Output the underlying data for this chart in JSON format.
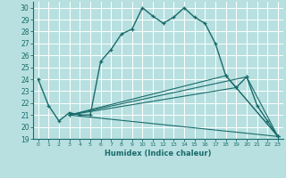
{
  "bg_color": "#b8e0e0",
  "grid_color": "#ffffff",
  "line_color": "#1a6b6b",
  "xlim": [
    -0.5,
    23.5
  ],
  "ylim": [
    19,
    30.5
  ],
  "yticks": [
    19,
    20,
    21,
    22,
    23,
    24,
    25,
    26,
    27,
    28,
    29,
    30
  ],
  "xticks": [
    0,
    1,
    2,
    3,
    4,
    5,
    6,
    7,
    8,
    9,
    10,
    11,
    12,
    13,
    14,
    15,
    16,
    17,
    18,
    19,
    20,
    21,
    22,
    23
  ],
  "xlabel": "Humidex (Indice chaleur)",
  "series1_x": [
    0,
    1,
    2,
    3,
    4,
    5,
    6,
    7,
    8,
    9,
    10,
    11,
    12,
    13,
    14,
    15,
    16,
    17,
    18,
    19,
    20,
    21,
    22,
    23
  ],
  "series1_y": [
    24.0,
    21.8,
    20.5,
    21.2,
    21.0,
    21.0,
    25.5,
    26.5,
    27.8,
    28.2,
    30.0,
    29.3,
    28.7,
    29.2,
    30.0,
    29.2,
    28.7,
    27.0,
    24.3,
    23.3,
    24.2,
    21.8,
    20.5,
    19.2
  ],
  "series2_x": [
    3,
    23
  ],
  "series2_y": [
    21.0,
    19.2
  ],
  "series3_x": [
    3,
    20,
    23
  ],
  "series3_y": [
    21.0,
    24.2,
    19.2
  ],
  "series4_x": [
    3,
    19,
    23
  ],
  "series4_y": [
    21.0,
    23.3,
    19.2
  ],
  "series5_x": [
    3,
    18,
    23
  ],
  "series5_y": [
    21.0,
    24.3,
    19.2
  ]
}
